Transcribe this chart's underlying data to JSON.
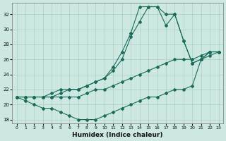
{
  "xlabel": "Humidex (Indice chaleur)",
  "background_color": "#cce8e0",
  "grid_color": "#aacfc8",
  "line_color": "#1a6b5a",
  "xlim": [
    -0.5,
    23.5
  ],
  "ylim": [
    17.5,
    33.5
  ],
  "yticks": [
    18,
    20,
    22,
    24,
    26,
    28,
    30,
    32
  ],
  "xticks": [
    0,
    1,
    2,
    3,
    4,
    5,
    6,
    7,
    8,
    9,
    10,
    11,
    12,
    13,
    14,
    15,
    16,
    17,
    18,
    19,
    20,
    21,
    22,
    23
  ],
  "series": [
    {
      "x": [
        0,
        1,
        2,
        3,
        4,
        5,
        6,
        7,
        8,
        9,
        10,
        11,
        12,
        13,
        14,
        15,
        16,
        17,
        18,
        19,
        20,
        21,
        22,
        23
      ],
      "y": [
        21,
        20.5,
        20,
        19.5,
        19.5,
        19,
        18.5,
        18,
        18,
        18,
        18.5,
        19,
        19.5,
        20,
        20.5,
        21,
        21,
        21.5,
        22,
        22,
        22.5,
        26,
        26.5,
        27
      ]
    },
    {
      "x": [
        0,
        1,
        2,
        3,
        4,
        5,
        6,
        7,
        8,
        9,
        10,
        11,
        12,
        13,
        14,
        15,
        16,
        17,
        18,
        19,
        20,
        21,
        22,
        23
      ],
      "y": [
        21,
        21,
        21,
        21,
        21,
        21,
        21,
        21,
        21.5,
        22,
        22,
        22.5,
        23,
        23.5,
        24,
        24.5,
        25,
        25.5,
        26,
        26,
        26,
        26.5,
        27,
        27
      ]
    },
    {
      "x": [
        0,
        1,
        2,
        3,
        4,
        5,
        6,
        7,
        8,
        9,
        10,
        11,
        12,
        13,
        14,
        15,
        16,
        17,
        18,
        19,
        20,
        21,
        22,
        23
      ],
      "y": [
        21,
        21,
        21,
        21,
        21.5,
        22,
        22,
        22,
        22.5,
        23,
        23.5,
        24.5,
        26,
        29,
        31,
        33,
        33,
        30.5,
        32,
        28.5,
        25.5,
        26,
        27,
        27
      ]
    },
    {
      "x": [
        0,
        1,
        2,
        3,
        4,
        5,
        6,
        7,
        8,
        9,
        10,
        11,
        12,
        13,
        14,
        15,
        16,
        17,
        18,
        19,
        20,
        21,
        22,
        23
      ],
      "y": [
        21,
        21,
        21,
        21,
        21,
        21.5,
        22,
        22,
        22.5,
        23,
        23.5,
        25,
        27,
        29.5,
        33,
        33,
        33,
        32,
        32,
        28.5,
        25.5,
        26,
        27,
        27
      ]
    }
  ]
}
